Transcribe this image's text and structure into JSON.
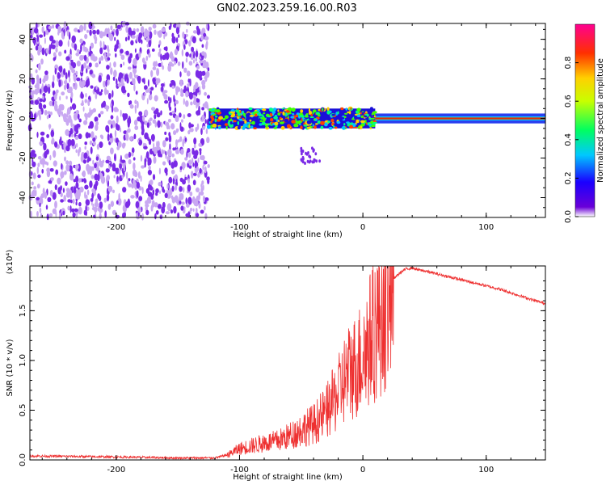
{
  "title": "GN02.2023.259.16.00.R03",
  "colors": {
    "snr_line": "#ee3030",
    "scatter": "#7a2ae6",
    "scatter_light": "#c9a8f2"
  },
  "chart_data": [
    {
      "type": "heatmap",
      "xlabel": "Height of straight line (km)",
      "ylabel": "Frequency (Hz)",
      "xlim": [
        -270,
        148
      ],
      "ylim": [
        -50,
        48
      ],
      "x_ticks": [
        -200,
        -100,
        0,
        100
      ],
      "y_ticks": [
        -40,
        -20,
        0,
        20,
        40
      ],
      "colorbar": {
        "label": "Normalized spectral amplitude",
        "range": [
          0.0,
          1.0
        ],
        "ticks": [
          "0.0",
          "0.2",
          "0.4",
          "0.6",
          "0.8"
        ],
        "colormap": "rainbow"
      },
      "regions": [
        {
          "x_range": [
            -270,
            -125
          ],
          "description_value": "low amplitude noise spread over all frequencies"
        },
        {
          "x_range": [
            -125,
            10
          ],
          "center_freq": 0,
          "spread_hz": 5
        },
        {
          "x_range": [
            10,
            148
          ],
          "center_freq": 0,
          "spread_hz": 1
        }
      ]
    },
    {
      "type": "line",
      "xlabel": "Height of straight line (km)",
      "ylabel": "SNR (10 * v/v)",
      "y_multiplier": "(x10⁴)",
      "xlim": [
        -270,
        148
      ],
      "ylim": [
        0,
        1.95
      ],
      "x_ticks": [
        -200,
        -100,
        0,
        100
      ],
      "y_ticks": [
        "0.0",
        "0.5",
        "1.0",
        "1.5"
      ],
      "y_tick_values": [
        0,
        0.5,
        1.0,
        1.5
      ],
      "series": [
        {
          "x": [
            -270,
            -200,
            -150,
            -120,
            -110,
            -100,
            -90,
            -80,
            -70,
            -60,
            -50,
            -40,
            -30,
            -25,
            -20,
            -15,
            -10,
            -5,
            0,
            5,
            10,
            15,
            20,
            25,
            30,
            35,
            40,
            45,
            50,
            60,
            70,
            80,
            90,
            100,
            110,
            120,
            130,
            140,
            148
          ],
          "y": [
            0.04,
            0.03,
            0.02,
            0.02,
            0.05,
            0.12,
            0.15,
            0.18,
            0.2,
            0.25,
            0.32,
            0.38,
            0.5,
            0.6,
            0.7,
            0.85,
            0.95,
            1.0,
            1.12,
            1.25,
            1.4,
            1.58,
            1.72,
            1.82,
            1.88,
            1.92,
            1.93,
            1.91,
            1.9,
            1.87,
            1.84,
            1.81,
            1.78,
            1.75,
            1.72,
            1.68,
            1.64,
            1.6,
            1.57
          ]
        }
      ]
    }
  ]
}
